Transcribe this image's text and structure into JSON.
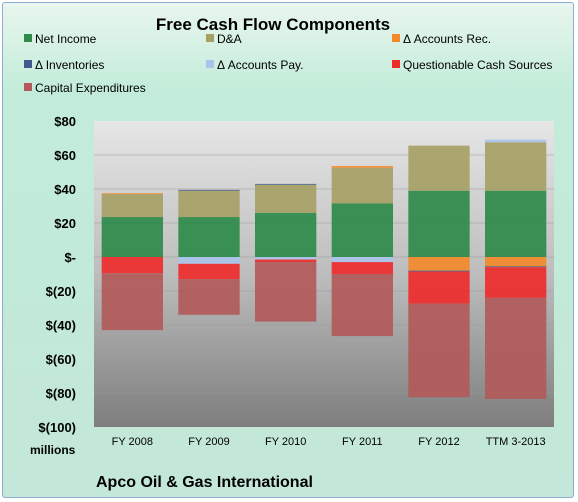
{
  "chart_data": {
    "type": "bar",
    "stacked": true,
    "title": "Free Cash Flow Components",
    "ylabel": "",
    "xlabel": "",
    "unit_label": "millions",
    "footer": "Apco Oil & Gas International",
    "categories": [
      "FY 2008",
      "FY 2009",
      "FY 2010",
      "FY 2011",
      "FY 2012",
      "TTM 3-2013"
    ],
    "ylim": [
      -100,
      80
    ],
    "yticks": [
      80,
      60,
      40,
      20,
      0,
      -20,
      -40,
      -60,
      -80,
      -100
    ],
    "ytick_labels": [
      "$80",
      "$60",
      "$40",
      "$20",
      "$-",
      "$(20)",
      "$(40)",
      "$(60)",
      "$(80)",
      "$(100)"
    ],
    "legend_position": "top",
    "series": [
      {
        "name": "Net Income",
        "color": "#2e8b4a",
        "values": [
          23.5,
          23.5,
          26,
          31.5,
          39,
          39
        ]
      },
      {
        "name": "D&A",
        "color": "#a6a065",
        "values": [
          13.5,
          15.5,
          16.5,
          21,
          26.5,
          28.5
        ]
      },
      {
        "name": "Δ Accounts Rec.",
        "color": "#f28a2a",
        "values": [
          0.5,
          0,
          0,
          1,
          -8,
          -5.5
        ]
      },
      {
        "name": "Δ Inventories",
        "color": "#3f5b8c",
        "values": [
          0,
          0.5,
          0.5,
          0,
          -0.5,
          -0.5
        ]
      },
      {
        "name": "Δ Accounts Pay.",
        "color": "#a9c4ea",
        "values": [
          0,
          -4,
          -1.5,
          -3,
          0,
          1.5
        ]
      },
      {
        "name": "Questionable Cash Sources",
        "color": "#ee2b2b",
        "values": [
          -9.5,
          -9,
          -1.5,
          -7,
          -19,
          -18
        ]
      },
      {
        "name": "Capital Expenditures",
        "color": "#b25a5a",
        "values": [
          -33.5,
          -21,
          -35,
          -36.5,
          -55,
          -59.5
        ]
      }
    ]
  }
}
